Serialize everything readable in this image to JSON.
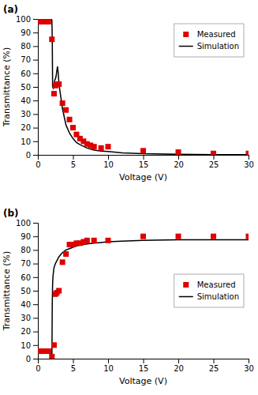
{
  "chart_data": [
    {
      "type": "line",
      "title": "(a)",
      "x_label": "Voltage (V)",
      "y_label": "Transmittance (%)",
      "xlim": [
        0,
        30
      ],
      "ylim": [
        0,
        100
      ],
      "xticks": [
        0,
        5,
        10,
        15,
        20,
        25,
        30
      ],
      "yticks": [
        0,
        10,
        20,
        30,
        40,
        50,
        60,
        70,
        80,
        90,
        100
      ],
      "legend": "upper right",
      "series": [
        {
          "name": "Measured",
          "type": "scatter",
          "color": "#dd0000",
          "marker": "square",
          "x": [
            0.0,
            0.5,
            1.0,
            1.5,
            2.0,
            2.3,
            2.5,
            2.7,
            3.0,
            3.5,
            4.0,
            4.5,
            5.0,
            5.5,
            6.0,
            6.5,
            7.0,
            7.5,
            8.0,
            9.0,
            10.0,
            15.0,
            20.0,
            25.0,
            30.0
          ],
          "values": [
            98,
            98,
            98,
            98,
            85,
            45,
            51,
            52,
            52,
            38,
            33,
            26,
            20,
            15,
            12,
            10,
            8,
            7,
            6,
            5,
            6,
            3,
            2,
            1,
            1
          ]
        },
        {
          "name": "Simulation",
          "type": "line",
          "color": "#000000",
          "line_style": "solid",
          "x": [
            0,
            0.3,
            0.6,
            0.9,
            1.2,
            1.5,
            1.8,
            1.9,
            1.95,
            2.0,
            2.05,
            2.1,
            2.2,
            2.3,
            2.4,
            2.5,
            2.6,
            2.7,
            2.8,
            2.9,
            3.0,
            3.2,
            3.5,
            4.0,
            4.5,
            5.0,
            5.5,
            6.0,
            7.0,
            8.0,
            9.0,
            10.0,
            12.0,
            15.0,
            20.0,
            25.0,
            30.0
          ],
          "values": [
            99.5,
            99.5,
            99.5,
            99.5,
            99.5,
            99.5,
            99.5,
            99.5,
            99.5,
            99.0,
            85,
            50,
            49,
            51,
            55,
            56,
            58,
            62,
            65,
            60,
            52,
            45,
            34,
            22,
            16,
            12,
            9,
            7.5,
            5.0,
            3.5,
            2.8,
            2.5,
            1.5,
            0.8,
            0.4,
            0.2,
            0.1
          ]
        }
      ]
    },
    {
      "type": "line",
      "title": "(b)",
      "x_label": "Voltage (V)",
      "y_label": "Transmittance (%)",
      "xlim": [
        0,
        30
      ],
      "ylim": [
        0,
        100
      ],
      "xticks": [
        0,
        5,
        10,
        15,
        20,
        25,
        30
      ],
      "yticks": [
        0,
        10,
        20,
        30,
        40,
        50,
        60,
        70,
        80,
        90,
        100
      ],
      "legend": "center right",
      "series": [
        {
          "name": "Measured",
          "type": "scatter",
          "color": "#dd0000",
          "marker": "square",
          "x": [
            0.0,
            0.5,
            1.0,
            1.5,
            2.0,
            2.3,
            2.5,
            2.7,
            3.0,
            3.5,
            4.0,
            4.5,
            5.0,
            5.5,
            6.0,
            6.5,
            7.0,
            8.0,
            10.0,
            15.0,
            20.0,
            25.0,
            30.0
          ],
          "values": [
            5.5,
            5.5,
            5.5,
            5.5,
            1.5,
            10,
            47.5,
            48.5,
            50,
            71,
            77,
            84,
            84,
            85,
            85,
            86,
            87,
            87,
            87,
            90,
            90,
            90,
            90
          ]
        },
        {
          "name": "Simulation",
          "type": "line",
          "color": "#000000",
          "line_style": "solid",
          "x": [
            0,
            0.3,
            0.6,
            0.9,
            1.2,
            1.5,
            1.7,
            1.8,
            1.9,
            1.95,
            2.0,
            2.05,
            2.1,
            2.15,
            2.2,
            2.3,
            2.5,
            2.7,
            3.0,
            3.5,
            4.0,
            4.5,
            5.0,
            5.5,
            6.0,
            7.0,
            8.0,
            9.0,
            10.0,
            12.0,
            15.0,
            20.0,
            25.0,
            30.0
          ],
          "values": [
            5.5,
            5.5,
            5.5,
            5.5,
            5.5,
            5.5,
            5.3,
            5.0,
            4.0,
            2.0,
            1.0,
            40,
            55,
            60,
            63,
            67,
            70,
            72,
            75,
            78,
            80,
            81,
            82,
            83,
            83.5,
            84.5,
            85,
            85.5,
            86,
            86.5,
            87,
            87.5,
            87.5,
            87.5
          ]
        }
      ]
    }
  ]
}
